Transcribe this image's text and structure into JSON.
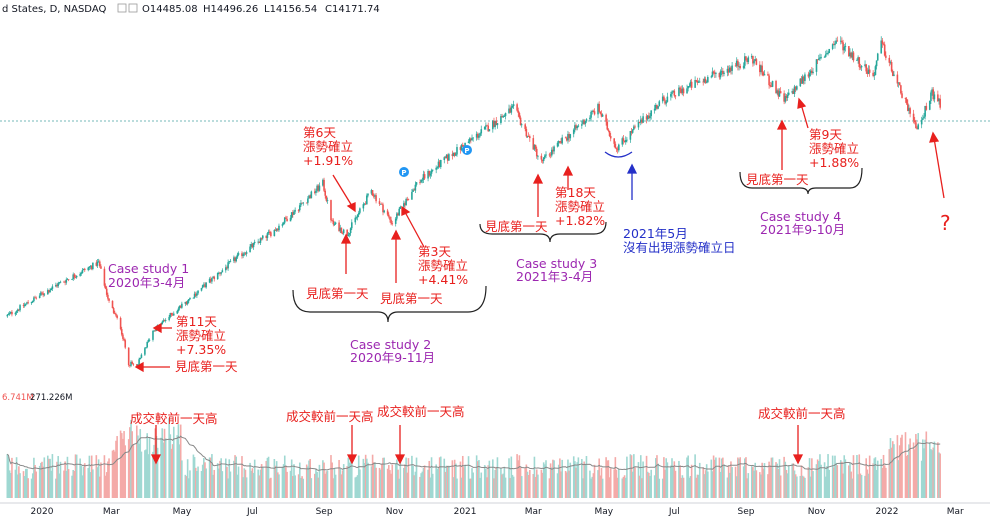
{
  "header": {
    "symbol": "d States, D, NASDAQ",
    "open": "O14485.08",
    "high": "H14496.26",
    "low": "L14156.54",
    "close": "C14171.74"
  },
  "volume_header": {
    "ma_value": "6.741M",
    "volume_value": "271.226M"
  },
  "colors": {
    "up": "#26a69a",
    "down": "#ef5350",
    "annotation_red": "#e8201e",
    "annotation_purple": "#9c27b0",
    "annotation_blue": "#2430c8",
    "price_line": "#4aa3a3"
  },
  "chart_data": {
    "type": "candlestick",
    "x_tick_labels": [
      "2020",
      "Mar",
      "May",
      "Jul",
      "Sep",
      "Nov",
      "2021",
      "Mar",
      "May",
      "Jul",
      "Sep",
      "Nov",
      "2022",
      "Mar"
    ],
    "price_path": [
      {
        "date": "2019-12-01",
        "close": 8300
      },
      {
        "date": "2020-01-15",
        "close": 9200
      },
      {
        "date": "2020-02-19",
        "close": 9800
      },
      {
        "date": "2020-02-28",
        "close": 8700
      },
      {
        "date": "2020-03-09",
        "close": 8000
      },
      {
        "date": "2020-03-16",
        "close": 7000
      },
      {
        "date": "2020-03-23",
        "close": 6900
      },
      {
        "date": "2020-04-06",
        "close": 7900
      },
      {
        "date": "2020-05-15",
        "close": 9000
      },
      {
        "date": "2020-06-20",
        "close": 10000
      },
      {
        "date": "2020-07-20",
        "close": 10700
      },
      {
        "date": "2020-08-31",
        "close": 12000
      },
      {
        "date": "2020-09-08",
        "close": 10900
      },
      {
        "date": "2020-09-21",
        "close": 10600
      },
      {
        "date": "2020-10-12",
        "close": 11800
      },
      {
        "date": "2020-10-30",
        "close": 10900
      },
      {
        "date": "2020-11-20",
        "close": 12000
      },
      {
        "date": "2020-12-20",
        "close": 12800
      },
      {
        "date": "2021-02-12",
        "close": 14100
      },
      {
        "date": "2021-03-08",
        "close": 12600
      },
      {
        "date": "2021-03-20",
        "close": 13000
      },
      {
        "date": "2021-04-26",
        "close": 14100
      },
      {
        "date": "2021-05-12",
        "close": 13000
      },
      {
        "date": "2021-06-20",
        "close": 14300
      },
      {
        "date": "2021-07-20",
        "close": 14800
      },
      {
        "date": "2021-09-06",
        "close": 15500
      },
      {
        "date": "2021-10-04",
        "close": 14300
      },
      {
        "date": "2021-11-19",
        "close": 16000
      },
      {
        "date": "2021-12-20",
        "close": 15000
      },
      {
        "date": "2021-12-27",
        "close": 15900
      },
      {
        "date": "2022-01-27",
        "close": 13500
      },
      {
        "date": "2022-02-09",
        "close": 14500
      },
      {
        "date": "2022-02-16",
        "close": 14200
      }
    ],
    "last_close": 14171.74,
    "ohlc_last": {
      "open": 14485.08,
      "high": 14496.26,
      "low": 14156.54,
      "close": 14171.74
    }
  },
  "annotations": {
    "cs1_title": "Case study 1",
    "cs1_date": "2020年3-4月",
    "cs1_day": "第11天",
    "cs1_confirm": "漲勢確立",
    "cs1_pct": "+7.35%",
    "cs1_bottom": "見底第一天",
    "cs2_day6": "第6天",
    "cs2_confirm6": "漲勢確立",
    "cs2_pct6": "+1.91%",
    "cs2_day3": "第3天",
    "cs2_confirm3": "漲勢確立",
    "cs2_pct3": "+4.41%",
    "cs2_bottom_a": "見底第一天",
    "cs2_bottom_b": "見底第一天",
    "cs2_title": "Case study 2",
    "cs2_date": "2020年9-11月",
    "cs3_day": "第18天",
    "cs3_confirm": "漲勢確立",
    "cs3_pct": "+1.82%",
    "cs3_bottom": "見底第一天",
    "cs3_title": "Case study 3",
    "cs3_date": "2021年3-4月",
    "may_title": "2021年5月",
    "may_note": "沒有出現漲勢確立日",
    "cs4_day": "第9天",
    "cs4_confirm": "漲勢確立",
    "cs4_pct": "+1.88%",
    "cs4_bottom": "見底第一天",
    "cs4_title": "Case study 4",
    "cs4_date": "2021年9-10月",
    "question": "?",
    "vol1": "成交較前一天高",
    "vol2": "成交較前一天高",
    "vol3": "成交較前一天高",
    "vol4": "成交較前一天高"
  }
}
